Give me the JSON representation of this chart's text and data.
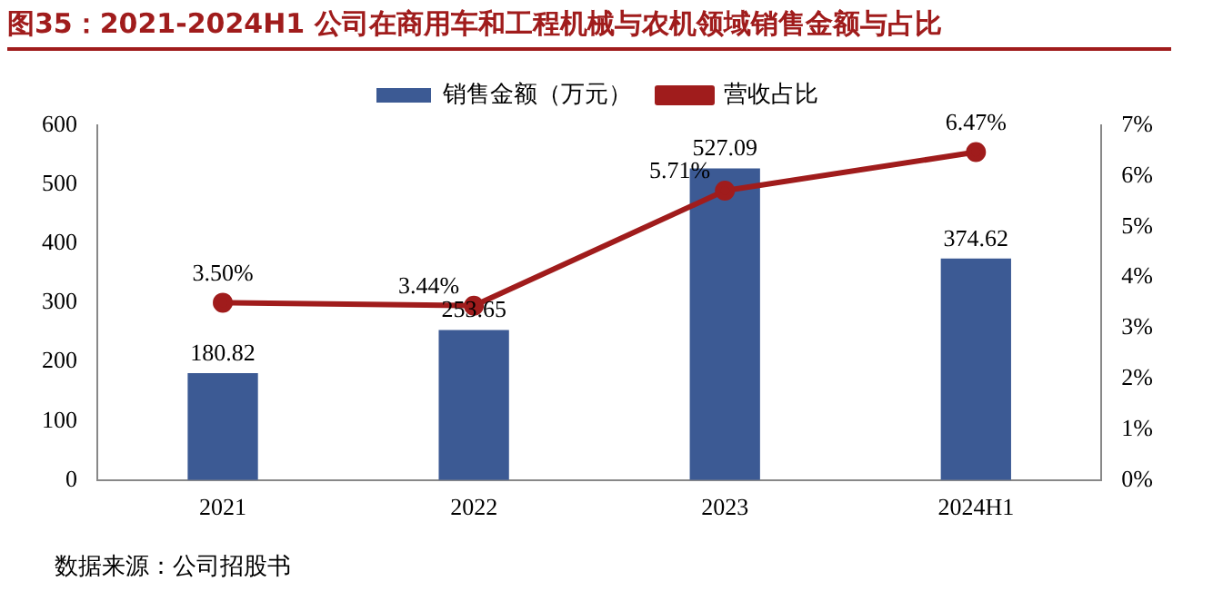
{
  "chart_data": {
    "type": "bar",
    "title": "图35：2021-2024H1 公司在商用车和工程机械与农机领域销售金额与占比",
    "categories": [
      "2021",
      "2022",
      "2023",
      "2024H1"
    ],
    "series": [
      {
        "name": "销售金额（万元）",
        "color": "#3c5a94",
        "values": [
          180.82,
          253.65,
          527.09,
          374.62
        ],
        "value_labels": [
          "180.82",
          "253.65",
          "527.09",
          "374.62"
        ]
      },
      {
        "name": "营收占比",
        "type": "line",
        "axis": "y2",
        "color": "#a01c1c",
        "marker": "circle",
        "values": [
          3.5,
          3.44,
          5.71,
          6.47
        ],
        "value_labels": [
          "3.50%",
          "3.44%",
          "5.71%",
          "6.47%"
        ]
      }
    ],
    "ylim": [
      0,
      600
    ],
    "yticks": [
      0,
      100,
      200,
      300,
      400,
      500,
      600
    ],
    "y2lim": [
      0,
      7
    ],
    "y2ticks": [
      {
        "value": 0,
        "label": "0%"
      },
      {
        "value": 1,
        "label": "1%"
      },
      {
        "value": 2,
        "label": "2%"
      },
      {
        "value": 3,
        "label": "3%"
      },
      {
        "value": 4,
        "label": "4%"
      },
      {
        "value": 5,
        "label": "5%"
      },
      {
        "value": 6,
        "label": "6%"
      },
      {
        "value": 7,
        "label": "7%"
      }
    ],
    "grid": false,
    "legend": "top",
    "annotations": [
      "数据来源：公司招股书"
    ]
  }
}
